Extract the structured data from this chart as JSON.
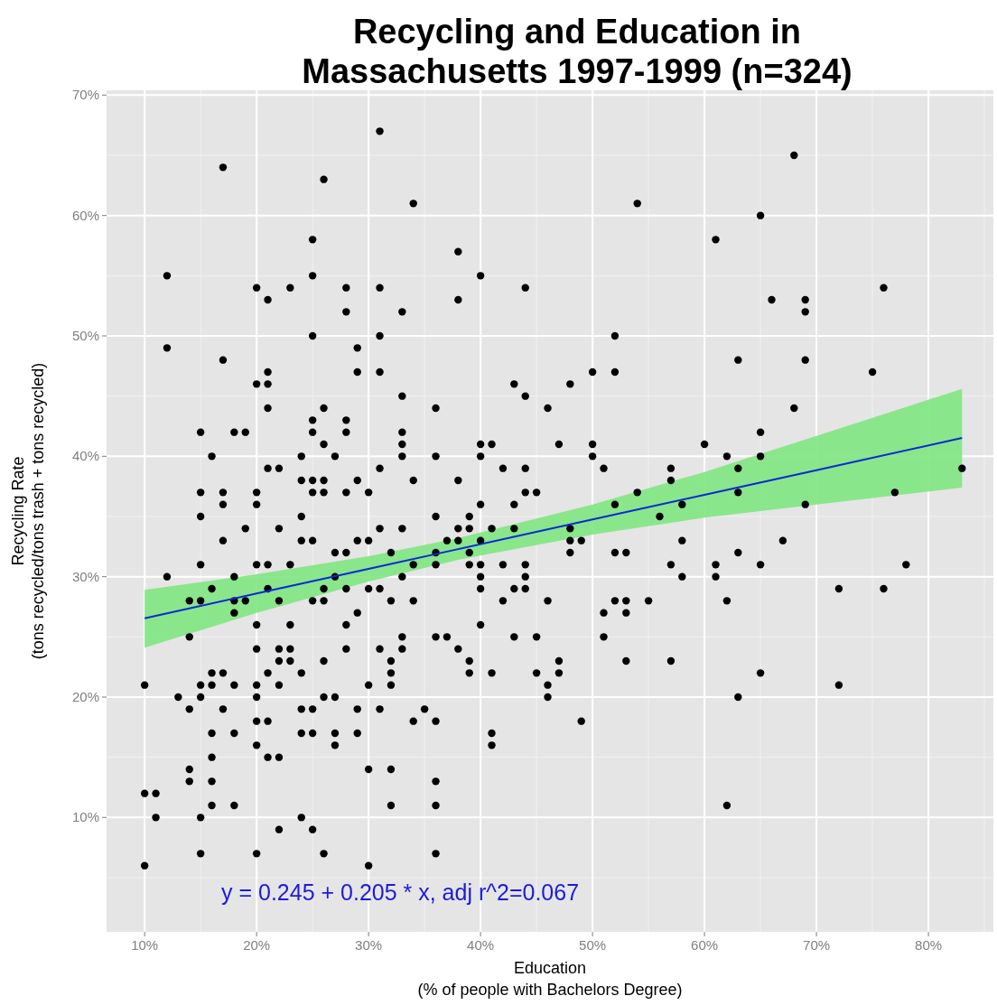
{
  "chart_data": {
    "type": "scatter",
    "title": "Recycling and Education in Massachusetts 1997-1999 (n=324)",
    "xlabel": "Education\n(% of people with Bachelors Degree)",
    "ylabel": "Recycling Rate\n(tons recycled/tons trash + tons recycled)",
    "xlim": [
      6.6,
      85.8
    ],
    "ylim": [
      0.5,
      70.4
    ],
    "xticks": [
      {
        "value": 10,
        "label": "10%"
      },
      {
        "value": 20,
        "label": "20%"
      },
      {
        "value": 30,
        "label": "30%"
      },
      {
        "value": 40,
        "label": "40%"
      },
      {
        "value": 50,
        "label": "50%"
      },
      {
        "value": 60,
        "label": "60%"
      },
      {
        "value": 70,
        "label": "70%"
      },
      {
        "value": 80,
        "label": "80%"
      }
    ],
    "yticks": [
      {
        "value": 10,
        "label": "10%"
      },
      {
        "value": 20,
        "label": "20%"
      },
      {
        "value": 30,
        "label": "30%"
      },
      {
        "value": 40,
        "label": "40%"
      },
      {
        "value": 50,
        "label": "50%"
      },
      {
        "value": 60,
        "label": "60%"
      },
      {
        "value": 70,
        "label": "70%"
      }
    ],
    "grid": true,
    "annotations": [
      "y = 0.245 + 0.205 * x, adj r^2=0.067"
    ],
    "series": [
      {
        "marker": "circle",
        "color": "#000000",
        "x": [
          10,
          10,
          10,
          11,
          11,
          12,
          12,
          12,
          13,
          14,
          14,
          14,
          14,
          14,
          15,
          15,
          15,
          15,
          15,
          15,
          15,
          15,
          15,
          16,
          16,
          16,
          16,
          16,
          16,
          16,
          16,
          17,
          17,
          17,
          17,
          17,
          17,
          17,
          18,
          18,
          18,
          18,
          18,
          18,
          18,
          19,
          19,
          19,
          20,
          20,
          20,
          20,
          20,
          20,
          20,
          20,
          20,
          20,
          20,
          20,
          21,
          21,
          21,
          21,
          21,
          21,
          21,
          21,
          21,
          21,
          22,
          22,
          22,
          22,
          22,
          22,
          22,
          22,
          23,
          23,
          23,
          23,
          23,
          24,
          24,
          24,
          24,
          24,
          24,
          24,
          24,
          25,
          25,
          25,
          25,
          25,
          25,
          25,
          25,
          25,
          25,
          25,
          25,
          26,
          26,
          26,
          26,
          26,
          26,
          26,
          26,
          26,
          26,
          27,
          27,
          27,
          27,
          27,
          27,
          28,
          28,
          28,
          28,
          28,
          28,
          28,
          28,
          28,
          29,
          29,
          29,
          29,
          29,
          29,
          29,
          30,
          30,
          30,
          30,
          30,
          30,
          31,
          31,
          31,
          31,
          31,
          31,
          31,
          31,
          31,
          32,
          32,
          32,
          32,
          32,
          32,
          32,
          33,
          33,
          33,
          33,
          33,
          33,
          33,
          33,
          33,
          34,
          34,
          34,
          34,
          34,
          35,
          36,
          36,
          36,
          36,
          36,
          36,
          36,
          36,
          36,
          36,
          37,
          37,
          38,
          38,
          38,
          38,
          38,
          38,
          39,
          39,
          39,
          39,
          39,
          39,
          40,
          40,
          40,
          40,
          40,
          40,
          40,
          40,
          40,
          41,
          41,
          41,
          41,
          41,
          42,
          42,
          42,
          43,
          43,
          43,
          43,
          43,
          44,
          44,
          44,
          44,
          44,
          44,
          44,
          45,
          45,
          45,
          46,
          46,
          46,
          46,
          47,
          47,
          47,
          48,
          48,
          48,
          48,
          49,
          49,
          50,
          50,
          50,
          51,
          51,
          51,
          52,
          52,
          52,
          52,
          52,
          53,
          53,
          53,
          53,
          54,
          54,
          55,
          56,
          57,
          57,
          57,
          57,
          58,
          58,
          58,
          60,
          61,
          61,
          61,
          62,
          62,
          62,
          63,
          63,
          63,
          63,
          63,
          65,
          65,
          65,
          65,
          65,
          66,
          67,
          68,
          68,
          69,
          69,
          69,
          69,
          72,
          72,
          75,
          76,
          76,
          77,
          78,
          83
        ],
        "values": [
          21,
          12,
          6,
          12,
          10,
          55,
          49,
          30,
          20,
          28,
          25,
          19,
          14,
          13,
          42,
          37,
          35,
          31,
          28,
          21,
          20,
          10,
          7,
          40,
          29,
          22,
          21,
          17,
          15,
          13,
          11,
          64,
          48,
          37,
          36,
          33,
          22,
          19,
          42,
          30,
          28,
          27,
          21,
          17,
          11,
          42,
          34,
          28,
          54,
          46,
          37,
          36,
          31,
          26,
          24,
          21,
          20,
          18,
          16,
          7,
          53,
          47,
          46,
          44,
          39,
          31,
          29,
          22,
          18,
          15,
          39,
          34,
          28,
          24,
          23,
          21,
          15,
          9,
          54,
          31,
          26,
          24,
          23,
          40,
          38,
          35,
          33,
          22,
          19,
          17,
          10,
          58,
          55,
          50,
          43,
          42,
          38,
          37,
          33,
          28,
          19,
          17,
          9,
          63,
          44,
          41,
          38,
          37,
          29,
          28,
          23,
          20,
          7,
          40,
          32,
          30,
          20,
          17,
          16,
          54,
          52,
          43,
          42,
          37,
          32,
          29,
          26,
          24,
          49,
          47,
          38,
          33,
          27,
          19,
          17,
          37,
          33,
          29,
          21,
          14,
          6,
          67,
          54,
          50,
          47,
          39,
          34,
          29,
          24,
          19,
          32,
          28,
          23,
          22,
          21,
          14,
          11,
          52,
          45,
          42,
          41,
          40,
          34,
          30,
          25,
          24,
          61,
          38,
          31,
          28,
          18,
          19,
          44,
          40,
          35,
          32,
          31,
          25,
          18,
          13,
          11,
          7,
          33,
          25,
          57,
          53,
          38,
          34,
          33,
          24,
          35,
          34,
          32,
          31,
          23,
          22,
          55,
          41,
          40,
          36,
          33,
          31,
          30,
          29,
          26,
          41,
          34,
          22,
          17,
          16,
          39,
          31,
          28,
          46,
          36,
          34,
          29,
          25,
          54,
          45,
          39,
          37,
          31,
          30,
          29,
          37,
          25,
          22,
          44,
          28,
          21,
          20,
          41,
          23,
          22,
          46,
          34,
          33,
          32,
          33,
          18,
          47,
          41,
          40,
          39,
          27,
          25,
          50,
          47,
          36,
          32,
          28,
          32,
          28,
          27,
          23,
          61,
          37,
          28,
          35,
          39,
          38,
          31,
          23,
          36,
          33,
          30,
          41,
          58,
          31,
          30,
          40,
          28,
          11,
          48,
          39,
          37,
          32,
          20,
          60,
          42,
          40,
          31,
          22,
          53,
          33,
          65,
          44,
          53,
          52,
          48,
          36,
          29,
          21,
          47,
          54,
          29,
          37,
          31,
          39
        ]
      },
      {
        "type": "line",
        "color": "#0a2bd6",
        "x": [
          10,
          20,
          30,
          38,
          50,
          60,
          70,
          83
        ],
        "values": [
          26.55,
          28.6,
          30.65,
          32.29,
          34.75,
          36.8,
          38.85,
          41.52
        ],
        "lower": [
          24.1,
          27.0,
          29.6,
          31.4,
          33.5,
          34.9,
          36.0,
          37.4
        ],
        "upper": [
          28.9,
          30.2,
          31.7,
          33.2,
          36.0,
          38.7,
          41.7,
          45.6
        ]
      }
    ]
  }
}
